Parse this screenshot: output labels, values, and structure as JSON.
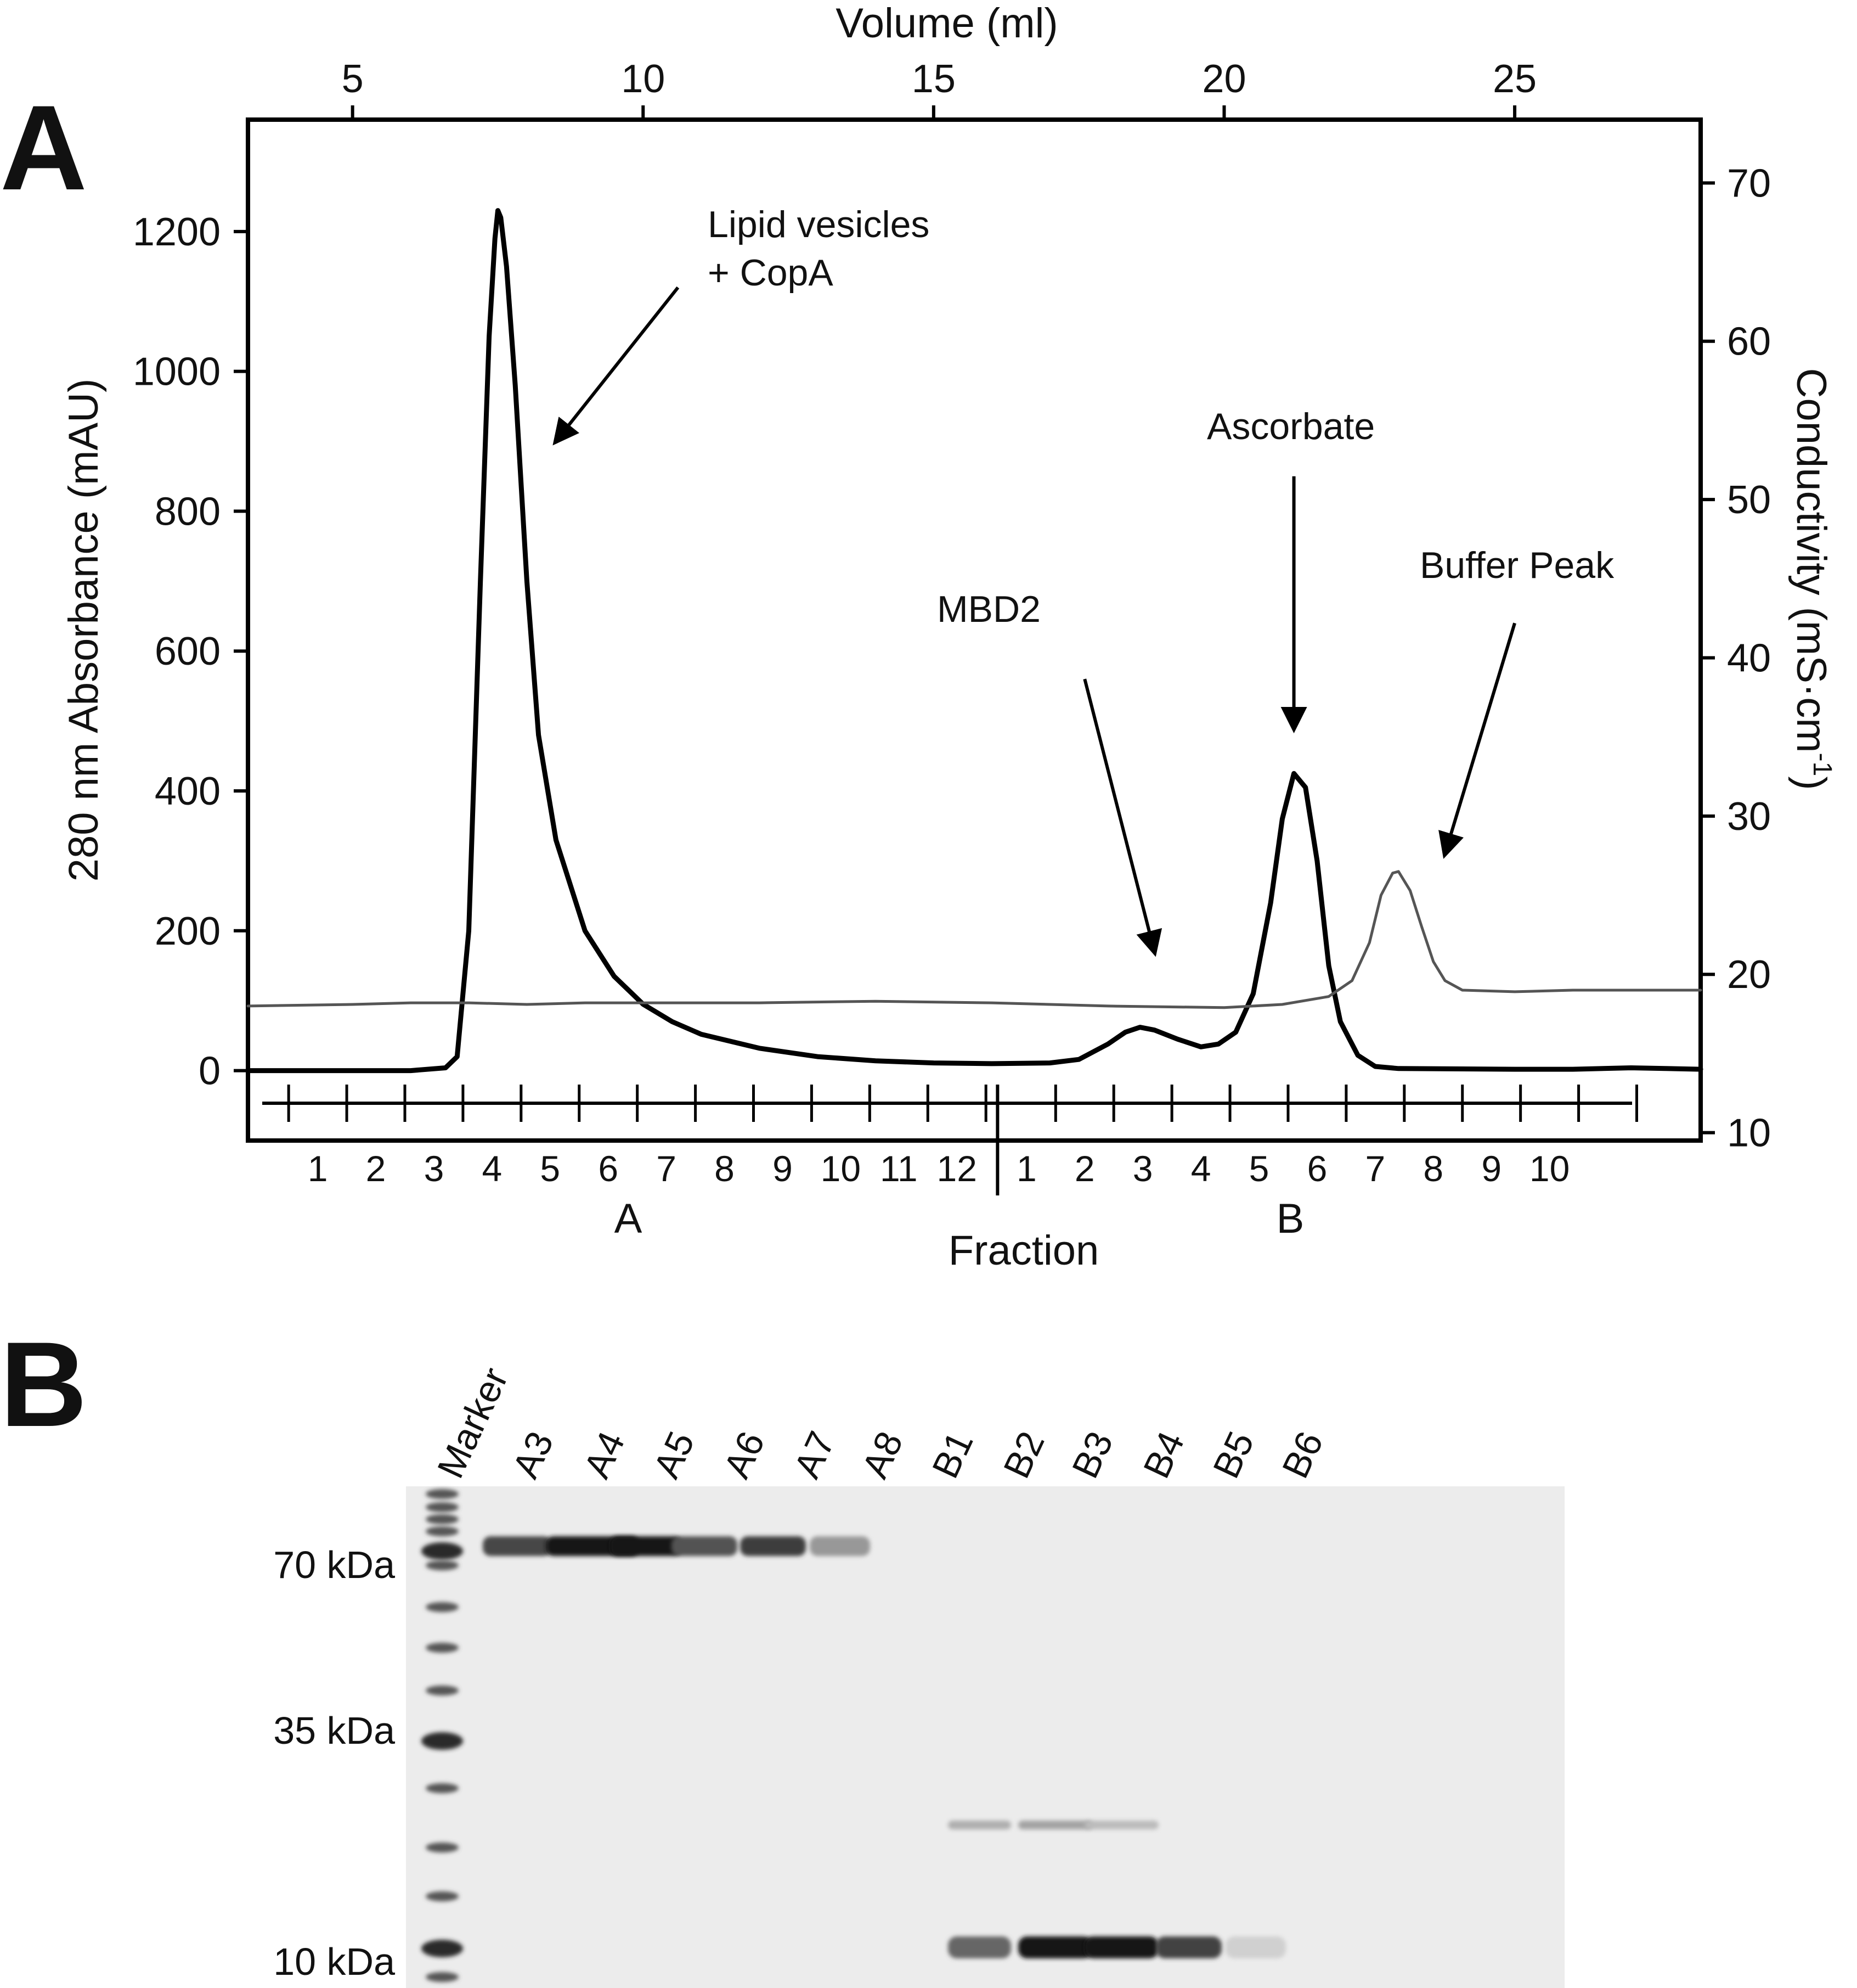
{
  "panel_labels": {
    "a": "A",
    "b": "B"
  },
  "chart_data": {
    "type": "line",
    "top_axis": {
      "label": "Volume (ml)",
      "range": [
        3.2,
        28.2
      ],
      "ticks": [
        5,
        10,
        15,
        20,
        25
      ]
    },
    "left_axis": {
      "label": "280 nm Absorbance (mAU)",
      "range": [
        -100,
        1360
      ],
      "ticks": [
        0,
        200,
        400,
        600,
        800,
        1000,
        1200
      ]
    },
    "right_axis": {
      "label": "Conductivity (mS·cm",
      "label_sup": "-1",
      "label_close": ")",
      "range": [
        9.5,
        74
      ],
      "ticks": [
        10,
        20,
        30,
        40,
        50,
        60,
        70
      ]
    },
    "bottom_axis": {
      "label": "Fraction",
      "group_a_label": "A",
      "group_b_label": "B",
      "fractions_a": [
        "1",
        "2",
        "3",
        "4",
        "5",
        "6",
        "7",
        "8",
        "9",
        "10",
        "11",
        "12"
      ],
      "fractions_b": [
        "1",
        "2",
        "3",
        "4",
        "5",
        "6",
        "7",
        "8",
        "9",
        "10"
      ],
      "fraction_a_start_ml": 3.9,
      "fraction_b_start_ml": 16.1,
      "fraction_width_ml": 1.0
    },
    "series": [
      {
        "axis": "left",
        "stroke": "#000000",
        "points": [
          [
            3.2,
            0
          ],
          [
            5,
            0
          ],
          [
            6,
            0
          ],
          [
            6.6,
            4
          ],
          [
            6.8,
            20
          ],
          [
            7.0,
            200
          ],
          [
            7.2,
            700
          ],
          [
            7.35,
            1050
          ],
          [
            7.45,
            1190
          ],
          [
            7.5,
            1230
          ],
          [
            7.55,
            1220
          ],
          [
            7.65,
            1150
          ],
          [
            7.8,
            980
          ],
          [
            8.0,
            700
          ],
          [
            8.2,
            480
          ],
          [
            8.5,
            330
          ],
          [
            9.0,
            200
          ],
          [
            9.5,
            135
          ],
          [
            10.0,
            95
          ],
          [
            10.5,
            70
          ],
          [
            11,
            52
          ],
          [
            12,
            32
          ],
          [
            13,
            20
          ],
          [
            14,
            14
          ],
          [
            15,
            11
          ],
          [
            16,
            10
          ],
          [
            17,
            11
          ],
          [
            17.5,
            16
          ],
          [
            18,
            38
          ],
          [
            18.3,
            55
          ],
          [
            18.55,
            62
          ],
          [
            18.8,
            58
          ],
          [
            19.2,
            45
          ],
          [
            19.6,
            34
          ],
          [
            19.9,
            38
          ],
          [
            20.2,
            55
          ],
          [
            20.5,
            110
          ],
          [
            20.8,
            240
          ],
          [
            21.0,
            360
          ],
          [
            21.2,
            425
          ],
          [
            21.4,
            405
          ],
          [
            21.6,
            300
          ],
          [
            21.8,
            150
          ],
          [
            22.0,
            70
          ],
          [
            22.3,
            22
          ],
          [
            22.6,
            6
          ],
          [
            23,
            3
          ],
          [
            25,
            2
          ],
          [
            26,
            2
          ],
          [
            27,
            4
          ],
          [
            28.2,
            2
          ]
        ]
      },
      {
        "axis": "right",
        "stroke": "#555555",
        "points": [
          [
            3.2,
            18
          ],
          [
            5,
            18.1
          ],
          [
            6,
            18.2
          ],
          [
            7,
            18.2
          ],
          [
            8,
            18.1
          ],
          [
            9,
            18.2
          ],
          [
            10,
            18.2
          ],
          [
            12,
            18.2
          ],
          [
            14,
            18.3
          ],
          [
            16,
            18.2
          ],
          [
            18,
            18
          ],
          [
            20,
            17.9
          ],
          [
            21,
            18.1
          ],
          [
            21.8,
            18.6
          ],
          [
            22.2,
            19.6
          ],
          [
            22.5,
            22
          ],
          [
            22.7,
            25
          ],
          [
            22.9,
            26.4
          ],
          [
            23.0,
            26.5
          ],
          [
            23.2,
            25.3
          ],
          [
            23.4,
            23
          ],
          [
            23.6,
            20.8
          ],
          [
            23.8,
            19.6
          ],
          [
            24.1,
            19
          ],
          [
            25,
            18.9
          ],
          [
            26,
            19
          ],
          [
            28.2,
            19
          ]
        ]
      }
    ],
    "annotations": [
      {
        "text": "Lipid vesicles",
        "text2": "+ CopA",
        "tip_ml": 8.5,
        "tip_mau": 900,
        "tail_ml": 10.6,
        "tail_mau": 1120
      },
      {
        "text": "MBD2",
        "tip_ml": 18.8,
        "tip_mau": 170,
        "tail_ml": 17.6,
        "tail_mau": 560
      },
      {
        "text": "Ascorbate",
        "tip_ml": 21.2,
        "tip_mau": 490,
        "tail_ml": 21.2,
        "tail_mau": 850
      },
      {
        "text": "Buffer Peak",
        "tip_ml": 23.8,
        "tip_mau": 310,
        "tail_ml": 25.0,
        "tail_mau": 640
      }
    ]
  },
  "gel": {
    "lanes": [
      "Marker",
      "A3",
      "A4",
      "A5",
      "A6",
      "A7",
      "A8",
      "B1",
      "B2",
      "B3",
      "B4",
      "B5",
      "B6"
    ],
    "mw_labels": [
      "70 kDa",
      "35 kDa",
      "10 kDa"
    ],
    "band_70_intensity": [
      0,
      0.8,
      1.0,
      1.0,
      0.75,
      0.85,
      0.45,
      0,
      0,
      0,
      0,
      0,
      0
    ],
    "band_10_intensity": [
      0,
      0,
      0,
      0,
      0,
      0,
      0,
      0,
      0.65,
      1.0,
      1.0,
      0.8,
      0.2
    ],
    "band_20_intensity": [
      0,
      0,
      0,
      0,
      0,
      0,
      0,
      0,
      0.15,
      0.18,
      0.12,
      0,
      0
    ]
  }
}
